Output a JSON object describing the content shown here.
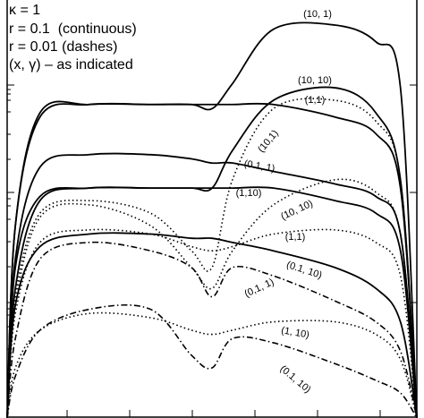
{
  "chart_data": {
    "type": "line",
    "annotations": [
      "κ = 1",
      "r = 0.1  (continuous)",
      "r = 0.01 (dashes)",
      "(x, γ) – as indicated"
    ],
    "x": [
      0,
      0.02,
      0.08,
      0.2,
      0.35,
      0.45,
      0.5,
      0.55,
      0.65,
      0.8,
      0.9,
      0.96,
      1
    ],
    "xlim": [
      0,
      1
    ],
    "ylim": [
      0,
      1
    ],
    "series": [
      {
        "name": "(10, 1)",
        "style": "solid",
        "color": "#000000",
        "values": [
          0,
          0.46,
          0.72,
          0.75,
          0.75,
          0.75,
          0.74,
          0.8,
          0.93,
          0.94,
          0.9,
          0.79,
          0
        ]
      },
      {
        "name": "(10, 10)",
        "style": "solid",
        "color": "#000000",
        "values": [
          0,
          0.36,
          0.53,
          0.55,
          0.55,
          0.55,
          0.55,
          0.64,
          0.76,
          0.79,
          0.73,
          0.57,
          0
        ]
      },
      {
        "name": "(1,1)",
        "style": "solid",
        "color": "#000000",
        "values": [
          0,
          0.46,
          0.73,
          0.75,
          0.75,
          0.75,
          0.75,
          0.75,
          0.75,
          0.72,
          0.68,
          0.55,
          0
        ]
      },
      {
        "name": "(0.1, 1)",
        "style": "solid",
        "color": "#000000",
        "values": [
          0,
          0.38,
          0.6,
          0.63,
          0.63,
          0.62,
          0.61,
          0.61,
          0.59,
          0.56,
          0.53,
          0.44,
          0
        ]
      },
      {
        "name": "(1,10)",
        "style": "solid",
        "color": "#000000",
        "values": [
          0,
          0.31,
          0.52,
          0.55,
          0.55,
          0.55,
          0.55,
          0.55,
          0.55,
          0.52,
          0.49,
          0.4,
          0
        ]
      },
      {
        "name": "(0.1, 10)",
        "style": "solid",
        "color": "#000000",
        "values": [
          0,
          0.27,
          0.41,
          0.44,
          0.44,
          0.43,
          0.43,
          0.42,
          0.4,
          0.36,
          0.31,
          0.23,
          0
        ]
      },
      {
        "name": "(10,1)",
        "style": "dotted",
        "color": "#000000",
        "values": [
          0,
          0.29,
          0.49,
          0.52,
          0.49,
          0.4,
          0.36,
          0.57,
          0.74,
          0.76,
          0.71,
          0.57,
          0
        ]
      },
      {
        "name": "(10, 10)",
        "style": "dotted",
        "color": "#000000",
        "values": [
          0,
          0.27,
          0.48,
          0.51,
          0.46,
          0.36,
          0.31,
          0.4,
          0.51,
          0.57,
          0.54,
          0.44,
          0
        ]
      },
      {
        "name": "(1,1)",
        "style": "dotted",
        "color": "#000000",
        "values": [
          0,
          0.25,
          0.42,
          0.45,
          0.44,
          0.41,
          0.4,
          0.41,
          0.44,
          0.45,
          0.42,
          0.34,
          0
        ]
      },
      {
        "name": "(0,1, 1)",
        "style": "dashdot",
        "color": "#000000",
        "values": [
          0,
          0.19,
          0.38,
          0.42,
          0.4,
          0.36,
          0.29,
          0.36,
          0.34,
          0.28,
          0.23,
          0.16,
          0
        ]
      },
      {
        "name": "(1, 10)",
        "style": "dotted",
        "color": "#000000",
        "values": [
          0,
          0.12,
          0.21,
          0.25,
          0.24,
          0.21,
          0.2,
          0.21,
          0.23,
          0.23,
          0.2,
          0.14,
          0
        ]
      },
      {
        "name": "(0.1, 10)",
        "style": "dashdot",
        "color": "#000000",
        "values": [
          0,
          0.1,
          0.21,
          0.26,
          0.26,
          0.15,
          0.12,
          0.19,
          0.18,
          0.13,
          0.09,
          0.06,
          0
        ]
      }
    ]
  }
}
